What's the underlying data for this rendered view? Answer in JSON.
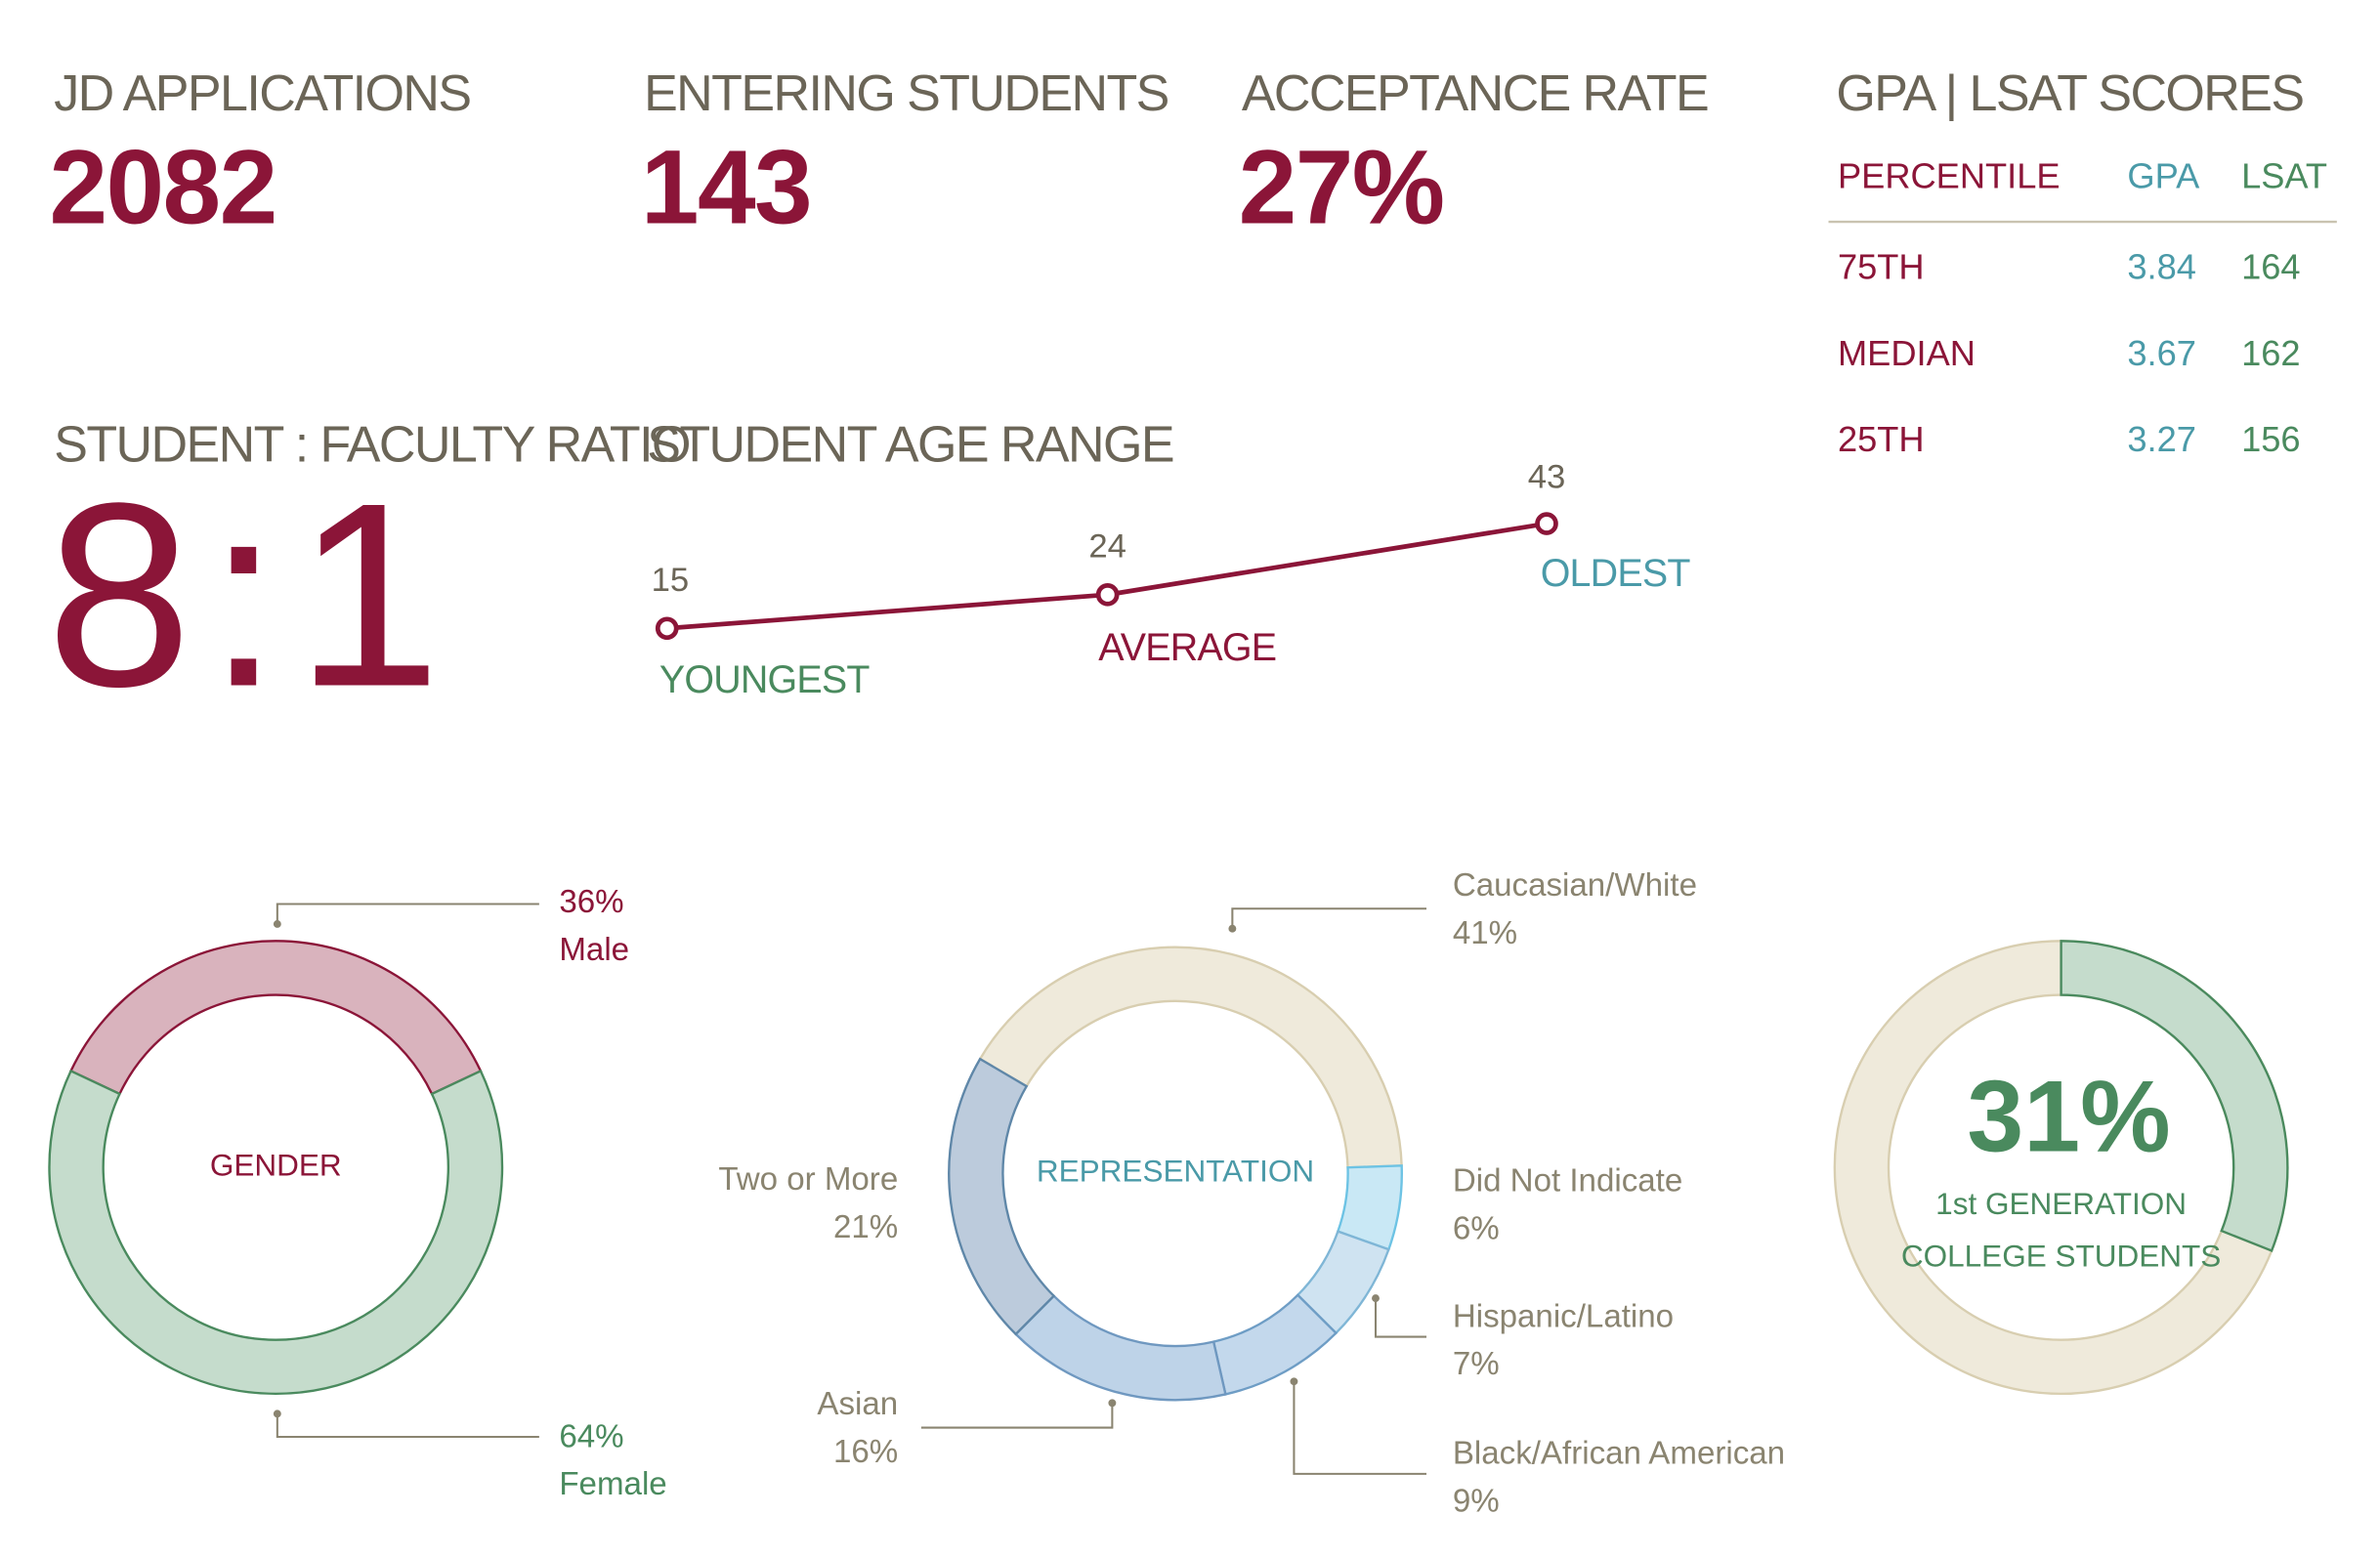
{
  "stats": [
    {
      "label": "JD APPLICATIONS",
      "value": 2082
    },
    {
      "label": "ENTERING STUDENTS",
      "value": 143
    },
    {
      "label": "ACCEPTANCE RATE",
      "value": "27%"
    }
  ],
  "ratio": {
    "label": "STUDENT : FACULTY RATIO",
    "value": "8:1"
  },
  "scores": {
    "title": "GPA | LSAT SCORES",
    "columns": [
      "PERCENTILE",
      "GPA",
      "LSAT"
    ],
    "rows": [
      [
        "75TH",
        3.84,
        164
      ],
      [
        "MEDIAN",
        3.67,
        162
      ],
      [
        "25TH",
        3.27,
        156
      ]
    ]
  },
  "chart_data": [
    {
      "type": "line",
      "title": "STUDENT AGE RANGE",
      "categories": [
        "YOUNGEST",
        "AVERAGE",
        "OLDEST"
      ],
      "values": [
        15,
        24,
        43
      ],
      "color": "#8b1538",
      "label_colors": [
        "#4a8a5e",
        "#8b1538",
        "#4a9aa8"
      ]
    },
    {
      "type": "donut",
      "title": "GENDER",
      "categories": [
        "Male",
        "Female"
      ],
      "values": [
        36,
        64
      ],
      "value_labels": [
        "36%",
        "64%"
      ],
      "colors": [
        "#d9b3bd",
        "#c5dccc"
      ],
      "edge_colors": [
        "#8b1538",
        "#4a8a5e"
      ]
    },
    {
      "type": "donut",
      "title": "REPRESENTATION",
      "categories": [
        "Caucasian/White",
        "Did Not Indicate",
        "Hispanic/Latino",
        "Black/African American",
        "Asian",
        "Two or More"
      ],
      "values": [
        41,
        6,
        7,
        9,
        16,
        21
      ],
      "value_labels": [
        "41%",
        "6%",
        "7%",
        "9%",
        "16%",
        "21%"
      ],
      "colors": [
        "#efeadb",
        "#c9e8f5",
        "#cfe3f1",
        "#c3d8ec",
        "#bed3e8",
        "#bccbdc"
      ],
      "edge_colors": [
        "#d8ceb0",
        "#6dc3e4",
        "#7fb6d6",
        "#6e9dc5",
        "#6f98c0",
        "#5f87a8"
      ]
    },
    {
      "type": "gauge",
      "title": [
        "1st GENERATION",
        "COLLEGE STUDENTS"
      ],
      "values": [
        31
      ],
      "value_labels": [
        "31%"
      ],
      "colors": [
        "#c5dccc"
      ],
      "edge_colors": [
        "#4a8a5e"
      ]
    }
  ]
}
